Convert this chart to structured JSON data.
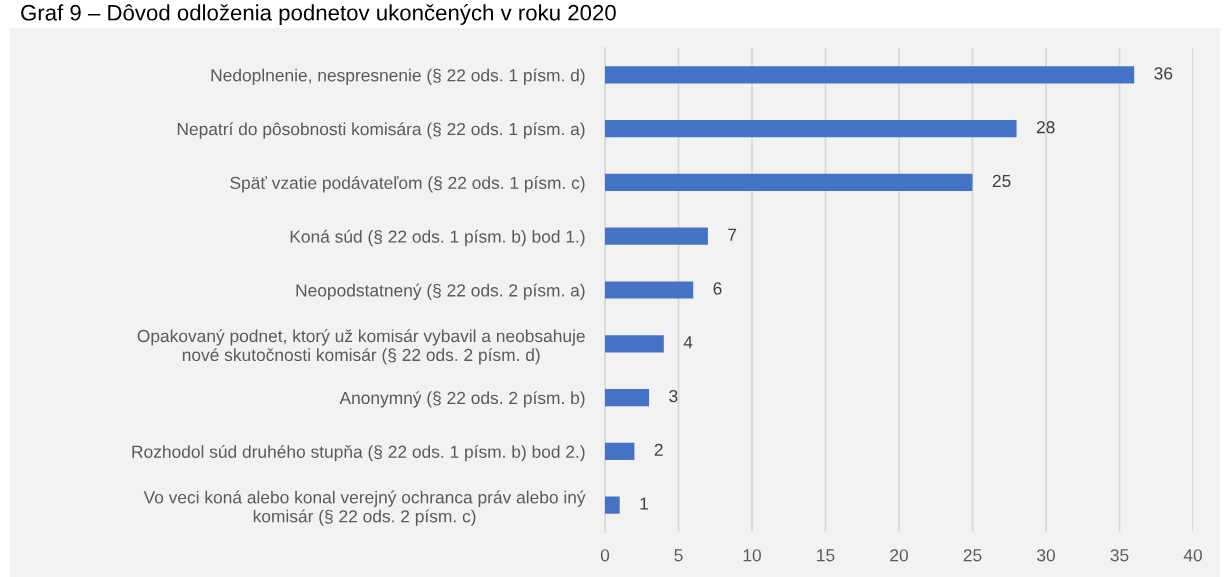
{
  "chart_data": {
    "type": "bar",
    "orientation": "horizontal",
    "title": "Graf 9 – Dôvod odloženia podnetov ukončených v roku 2020",
    "categories": [
      "Nedoplnenie, nespresnenie (§ 22 ods. 1 písm. d)",
      "Nepatrí do pôsobnosti komisára (§ 22 ods. 1 písm. a)",
      "Späť vzatie podávateľom (§ 22 ods. 1 písm. c)",
      "Koná súd (§ 22 ods. 1 písm. b) bod 1.)",
      "Neopodstatnený (§ 22 ods. 2 písm. a)",
      "Opakovaný podnet, ktorý už komisár vybavil a neobsahuje\nnové skutočnosti komisár (§ 22 ods. 2 písm. d)",
      "Anonymný (§ 22 ods. 2 písm. b)",
      "Rozhodol súd druhého stupňa (§ 22 ods. 1 písm. b) bod 2.)",
      "Vo veci koná alebo konal verejný ochranca práv alebo iný\nkomisár (§ 22 ods. 2 písm. c)"
    ],
    "values": [
      36,
      28,
      25,
      7,
      6,
      4,
      3,
      2,
      1
    ],
    "color": "#4472c4",
    "xlim": [
      0,
      40
    ],
    "xticks": [
      0,
      5,
      10,
      15,
      20,
      25,
      30,
      35,
      40
    ],
    "grid": "x",
    "data_labels": true
  }
}
